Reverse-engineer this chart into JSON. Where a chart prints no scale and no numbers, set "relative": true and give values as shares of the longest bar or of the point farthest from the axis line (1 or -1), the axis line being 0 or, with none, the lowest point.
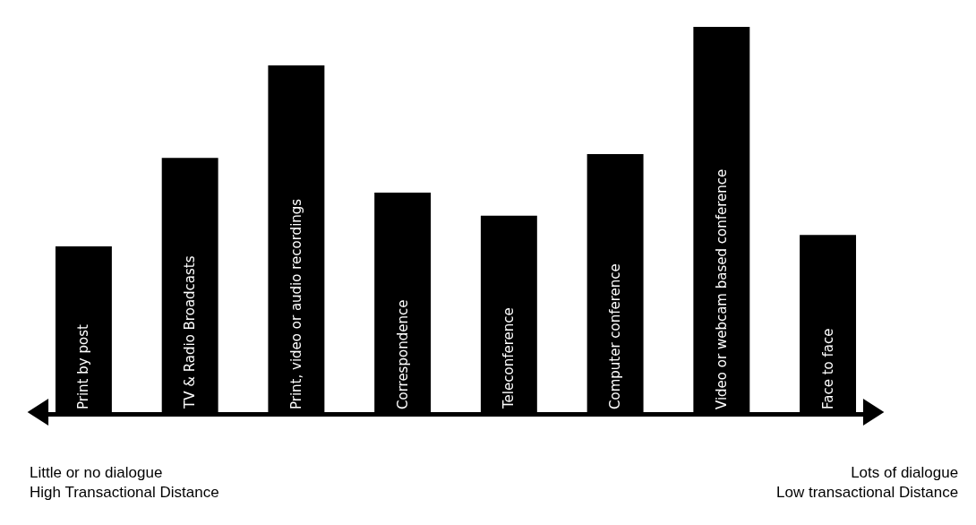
{
  "chart_data": {
    "type": "bar",
    "relative": true,
    "color": "#000000",
    "tick_labels": false,
    "legend": false,
    "categories": [
      "Print by post",
      "TV & Radio Broadcasts",
      "Print, video or audio recordings",
      "Correspondence",
      "Teleconference",
      "Computer conference",
      "Video or webcam based conference",
      "Face to face"
    ],
    "values": [
      0.43,
      0.66,
      0.9,
      0.57,
      0.51,
      0.67,
      1.0,
      0.46
    ],
    "annotations": [
      "Little or no dialogue\nHigh Transactional Distance",
      "Lots of dialogue\nLow transactional Distance"
    ]
  }
}
